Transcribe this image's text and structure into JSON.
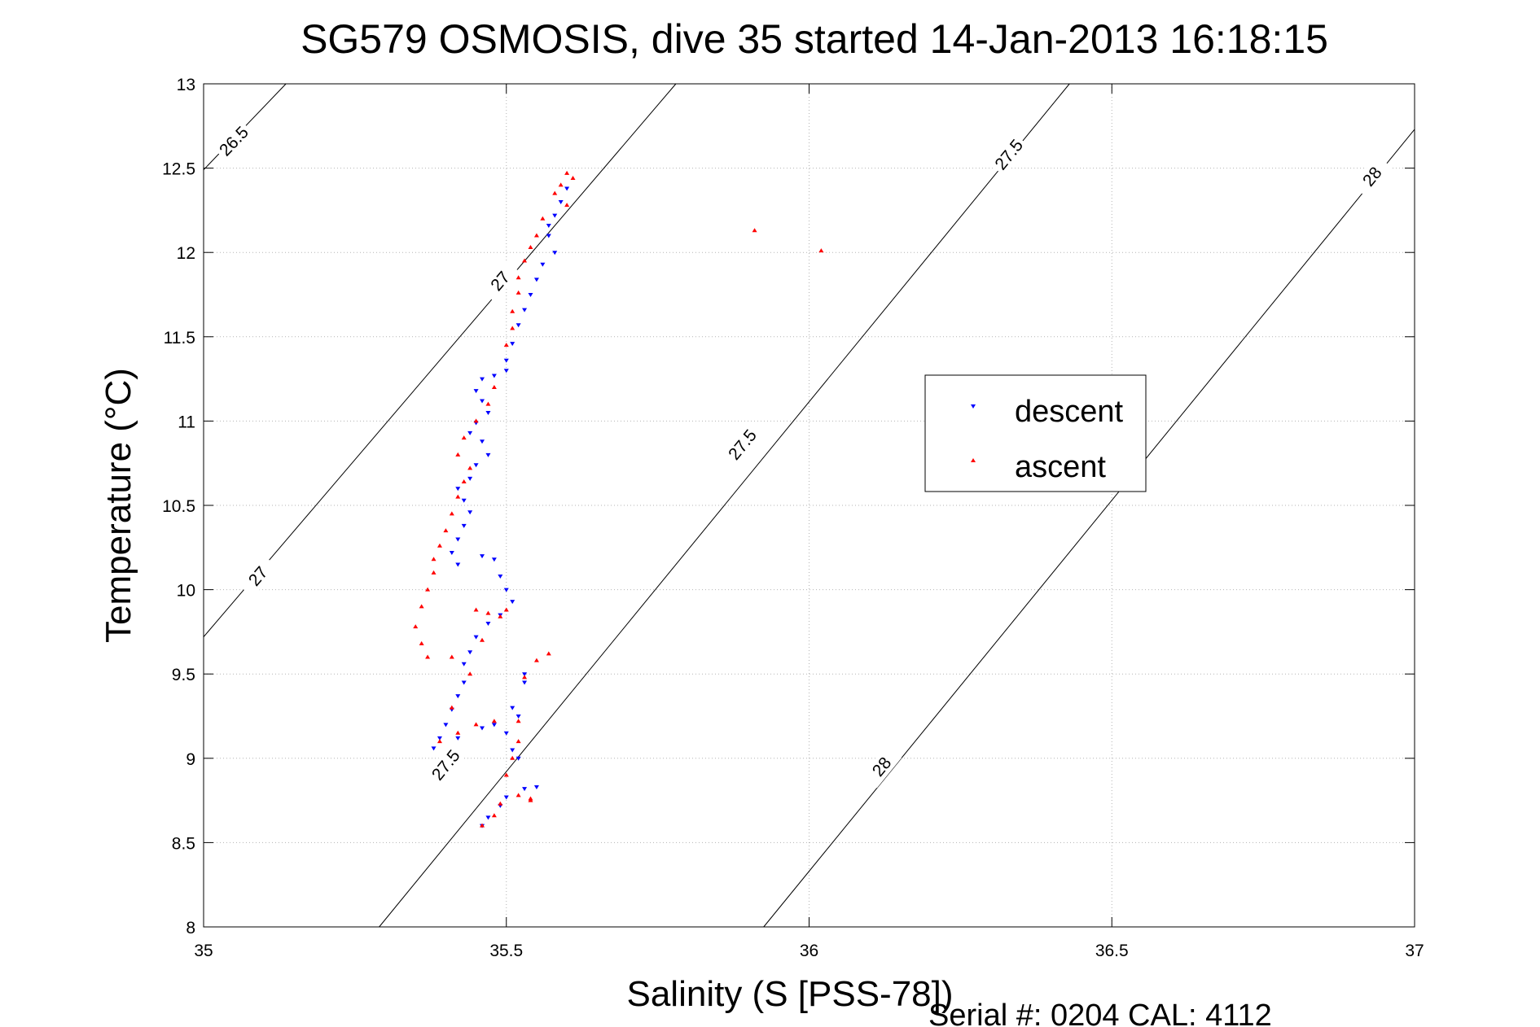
{
  "chart_data": {
    "type": "scatter",
    "title": "SG579 OSMOSIS, dive 35 started 14-Jan-2013 16:18:15",
    "xlabel": "Salinity (S [PSS-78])",
    "ylabel": "Temperature (°C)",
    "footer": "Serial #: 0204  CAL: 4112",
    "xlim": [
      35,
      37
    ],
    "ylim": [
      8,
      13
    ],
    "xticks": [
      "35",
      "35.5",
      "36",
      "36.5",
      "37"
    ],
    "yticks": [
      "8",
      "8.5",
      "9",
      "9.5",
      "10",
      "10.5",
      "11",
      "11.5",
      "12",
      "12.5",
      "13"
    ],
    "grid": true,
    "legend_position": "center-right",
    "density_contours": [
      {
        "level": 26.5,
        "label": "26.5",
        "points": [
          [
            35.0,
            12.49
          ],
          [
            35.136,
            13.0
          ]
        ],
        "label_at": [
          [
            35.05,
            12.66
          ]
        ]
      },
      {
        "level": 27,
        "label": "27",
        "points": [
          [
            35.0,
            9.72
          ],
          [
            35.78,
            13.0
          ]
        ],
        "label_at": [
          [
            35.09,
            10.08
          ],
          [
            35.49,
            11.83
          ]
        ]
      },
      {
        "level": 27.5,
        "label": "27.5",
        "points": [
          [
            35.29,
            8.0
          ],
          [
            36.43,
            13.0
          ]
        ],
        "label_at": [
          [
            35.4,
            8.96
          ],
          [
            35.89,
            10.86
          ],
          [
            36.33,
            12.58
          ]
        ]
      },
      {
        "level": 28,
        "label": "28",
        "points": [
          [
            35.925,
            8.0
          ],
          [
            37.0,
            12.73
          ]
        ],
        "label_at": [
          [
            36.12,
            8.95
          ],
          [
            36.93,
            12.45
          ]
        ]
      }
    ],
    "series": [
      {
        "name": "descent",
        "color": "#0000ff",
        "marker": "triangle-down",
        "points": [
          [
            35.6,
            12.38
          ],
          [
            35.59,
            12.3
          ],
          [
            35.58,
            12.22
          ],
          [
            35.57,
            12.16
          ],
          [
            35.57,
            12.1
          ],
          [
            35.58,
            12.0
          ],
          [
            35.56,
            11.93
          ],
          [
            35.55,
            11.84
          ],
          [
            35.54,
            11.75
          ],
          [
            35.53,
            11.66
          ],
          [
            35.52,
            11.57
          ],
          [
            35.51,
            11.46
          ],
          [
            35.5,
            11.36
          ],
          [
            35.5,
            11.3
          ],
          [
            35.48,
            11.27
          ],
          [
            35.46,
            11.25
          ],
          [
            35.45,
            11.18
          ],
          [
            35.46,
            11.12
          ],
          [
            35.47,
            11.05
          ],
          [
            35.45,
            10.99
          ],
          [
            35.44,
            10.93
          ],
          [
            35.46,
            10.88
          ],
          [
            35.47,
            10.8
          ],
          [
            35.45,
            10.74
          ],
          [
            35.44,
            10.66
          ],
          [
            35.42,
            10.6
          ],
          [
            35.43,
            10.53
          ],
          [
            35.44,
            10.46
          ],
          [
            35.43,
            10.38
          ],
          [
            35.42,
            10.3
          ],
          [
            35.41,
            10.22
          ],
          [
            35.42,
            10.15
          ],
          [
            35.46,
            10.2
          ],
          [
            35.48,
            10.18
          ],
          [
            35.49,
            10.08
          ],
          [
            35.5,
            10.0
          ],
          [
            35.51,
            9.93
          ],
          [
            35.49,
            9.85
          ],
          [
            35.47,
            9.8
          ],
          [
            35.45,
            9.72
          ],
          [
            35.44,
            9.63
          ],
          [
            35.43,
            9.56
          ],
          [
            35.43,
            9.45
          ],
          [
            35.42,
            9.37
          ],
          [
            35.41,
            9.29
          ],
          [
            35.4,
            9.2
          ],
          [
            35.39,
            9.12
          ],
          [
            35.38,
            9.06
          ],
          [
            35.42,
            9.12
          ],
          [
            35.46,
            9.18
          ],
          [
            35.48,
            9.2
          ],
          [
            35.52,
            9.25
          ],
          [
            35.53,
            9.45
          ],
          [
            35.53,
            9.5
          ],
          [
            35.51,
            9.3
          ],
          [
            35.5,
            9.15
          ],
          [
            35.51,
            9.05
          ],
          [
            35.52,
            9.0
          ],
          [
            35.49,
            8.72
          ],
          [
            35.47,
            8.65
          ],
          [
            35.46,
            8.6
          ],
          [
            35.5,
            8.77
          ],
          [
            35.53,
            8.82
          ],
          [
            35.55,
            8.83
          ]
        ]
      },
      {
        "name": "ascent",
        "color": "#ff0000",
        "marker": "triangle-up",
        "points": [
          [
            35.6,
            12.47
          ],
          [
            35.61,
            12.44
          ],
          [
            35.59,
            12.4
          ],
          [
            35.58,
            12.35
          ],
          [
            35.6,
            12.28
          ],
          [
            35.56,
            12.2
          ],
          [
            35.55,
            12.1
          ],
          [
            35.54,
            12.03
          ],
          [
            35.53,
            11.95
          ],
          [
            35.52,
            11.85
          ],
          [
            35.52,
            11.76
          ],
          [
            35.51,
            11.65
          ],
          [
            35.51,
            11.55
          ],
          [
            35.5,
            11.45
          ],
          [
            35.48,
            11.2
          ],
          [
            35.47,
            11.1
          ],
          [
            35.45,
            11.0
          ],
          [
            35.43,
            10.9
          ],
          [
            35.42,
            10.8
          ],
          [
            35.44,
            10.72
          ],
          [
            35.43,
            10.64
          ],
          [
            35.42,
            10.55
          ],
          [
            35.41,
            10.45
          ],
          [
            35.4,
            10.35
          ],
          [
            35.39,
            10.26
          ],
          [
            35.38,
            10.18
          ],
          [
            35.38,
            10.1
          ],
          [
            35.37,
            10.0
          ],
          [
            35.36,
            9.9
          ],
          [
            35.35,
            9.78
          ],
          [
            35.36,
            9.68
          ],
          [
            35.37,
            9.6
          ],
          [
            35.41,
            9.6
          ],
          [
            35.45,
            9.88
          ],
          [
            35.47,
            9.86
          ],
          [
            35.49,
            9.84
          ],
          [
            35.5,
            9.88
          ],
          [
            35.46,
            9.7
          ],
          [
            35.44,
            9.5
          ],
          [
            35.41,
            9.3
          ],
          [
            35.39,
            9.1
          ],
          [
            35.42,
            9.15
          ],
          [
            35.45,
            9.2
          ],
          [
            35.48,
            9.22
          ],
          [
            35.52,
            9.22
          ],
          [
            35.53,
            9.48
          ],
          [
            35.55,
            9.58
          ],
          [
            35.57,
            9.62
          ],
          [
            35.52,
            9.1
          ],
          [
            35.51,
            9.0
          ],
          [
            35.5,
            8.9
          ],
          [
            35.49,
            8.73
          ],
          [
            35.48,
            8.66
          ],
          [
            35.46,
            8.6
          ],
          [
            35.52,
            8.78
          ],
          [
            35.54,
            8.76
          ],
          [
            35.54,
            8.75
          ],
          [
            35.91,
            12.13
          ],
          [
            36.02,
            12.01
          ]
        ]
      }
    ]
  }
}
